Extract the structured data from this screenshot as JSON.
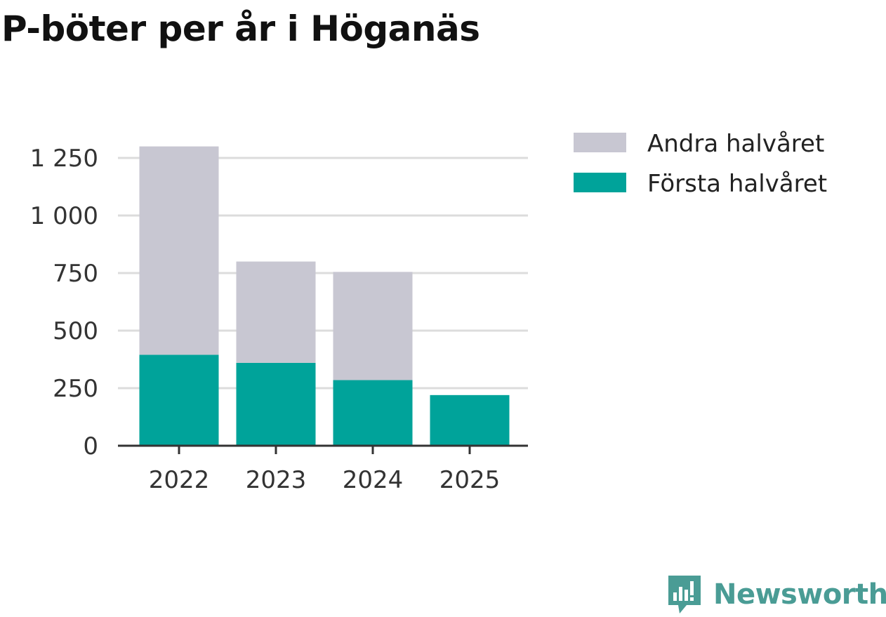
{
  "chart_data": {
    "type": "bar",
    "stacked": true,
    "title": "P-böter per år i Höganäs",
    "categories": [
      "2022",
      "2023",
      "2024",
      "2025"
    ],
    "series": [
      {
        "name": "Första halvåret",
        "color": "#00a39a",
        "values": [
          395,
          360,
          285,
          220
        ]
      },
      {
        "name": "Andra halvåret",
        "color": "#c8c7d2",
        "values": [
          905,
          440,
          470,
          0
        ]
      }
    ],
    "legend_order": [
      "Andra halvåret",
      "Första halvåret"
    ],
    "yticks": [
      0,
      250,
      500,
      750,
      1000,
      1250
    ],
    "ytick_labels": [
      "0",
      "250",
      "500",
      "750",
      "1 000",
      "1 250"
    ],
    "ylim": [
      0,
      1300
    ],
    "xlabel": "",
    "ylabel": "",
    "grid": true,
    "legend_position": "right"
  },
  "brand": {
    "name": "Newsworthy",
    "color": "#4a9c95",
    "icon": "newsworthy-logo-icon"
  }
}
